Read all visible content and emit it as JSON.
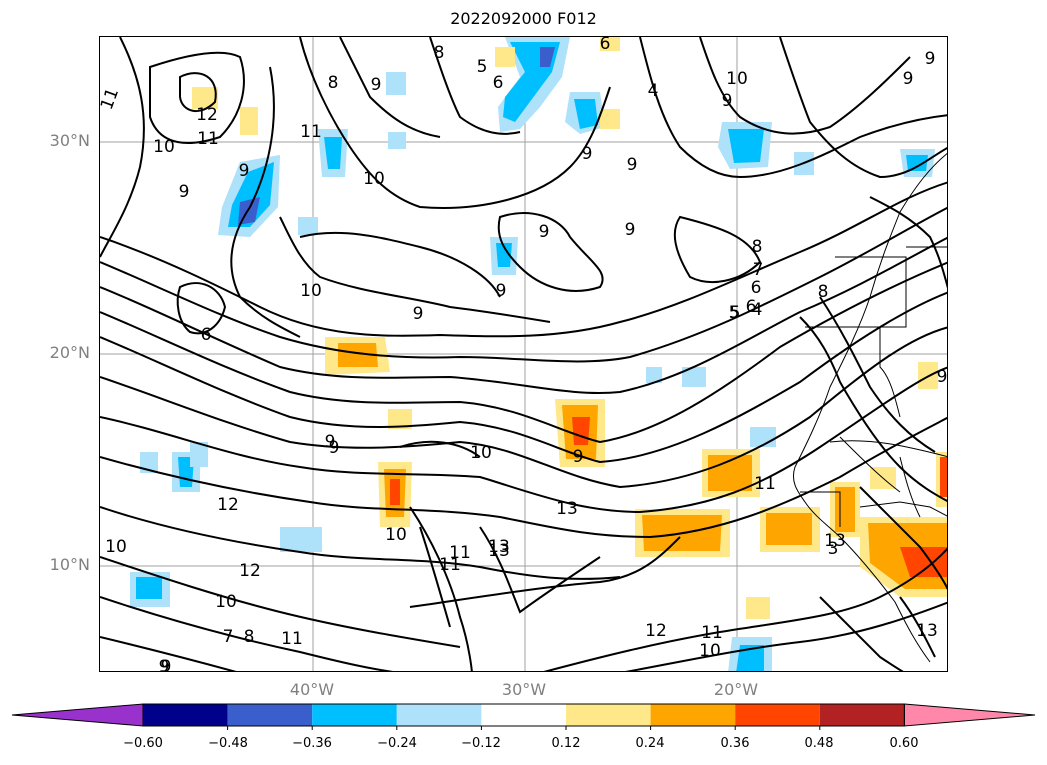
{
  "title": "2022092000 F012",
  "lat_labels": [
    "30°N",
    "20°N",
    "10°N"
  ],
  "lon_labels": [
    "40°W",
    "30°W",
    "20°W"
  ],
  "contour_labels": [
    "11",
    "12",
    "10",
    "11",
    "9",
    "8",
    "9",
    "8",
    "5",
    "6",
    "4",
    "10",
    "9",
    "9",
    "11",
    "10",
    "9",
    "9",
    "9",
    "9",
    "9",
    "8",
    "7",
    "6",
    "5",
    "4",
    "10",
    "9",
    "6",
    "9",
    "10",
    "9",
    "12",
    "10",
    "11",
    "12",
    "10",
    "8",
    "11",
    "9",
    "13",
    "13",
    "10",
    "11",
    "9",
    "13",
    "7",
    "11",
    "6",
    "5",
    "8",
    "12",
    "9",
    "10",
    "13",
    "9",
    "6",
    "9",
    "3",
    "13",
    "11",
    "9"
  ],
  "colorbar": {
    "ticks": [
      "−0.60",
      "−0.48",
      "−0.36",
      "−0.24",
      "−0.12",
      "0.12",
      "0.24",
      "0.36",
      "0.48",
      "0.60"
    ],
    "colors": [
      "#9932cc",
      "#00008b",
      "#3a5fcd",
      "#00bfff",
      "#aee1fa",
      "#ffffff",
      "#ffe88a",
      "#ffa500",
      "#ff4500",
      "#b22222",
      "#ff88aa"
    ]
  },
  "colors": {
    "grid": "#a0a0a0",
    "contour": "#000000",
    "label_gray": "#808080"
  }
}
